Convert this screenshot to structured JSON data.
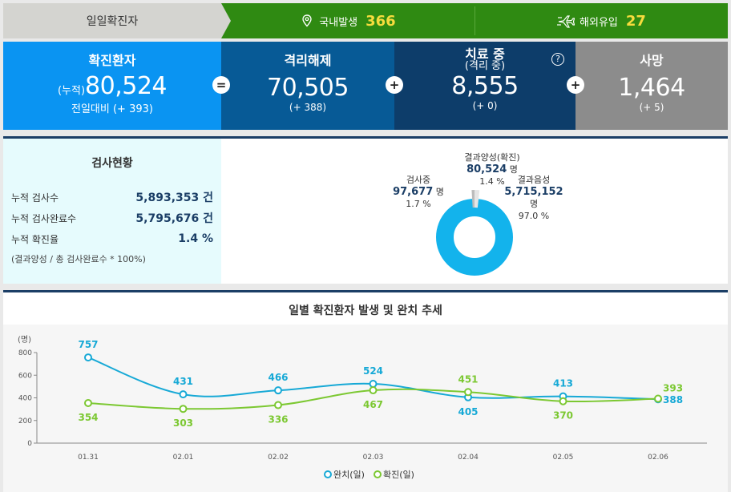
{
  "topbar": {
    "label": "일일확진자",
    "domestic_label": "국내발생",
    "domestic_value": "366",
    "overseas_label": "해외유입",
    "overseas_value": "27"
  },
  "stats": {
    "confirmed": {
      "title": "확진환자",
      "prefix": "(누적)",
      "value": "80,524",
      "diff": "전일대비 (+ 393)"
    },
    "released": {
      "title": "격리해제",
      "value": "70,505",
      "diff": "(+ 388)"
    },
    "treating": {
      "title": "치료 중",
      "subtitle": "(격리 중)",
      "value": "8,555",
      "diff": "(+ 0)",
      "help": "?"
    },
    "deaths": {
      "title": "사망",
      "value": "1,464",
      "diff": "(+ 5)"
    },
    "ops": [
      "=",
      "+",
      "+"
    ]
  },
  "tests": {
    "title": "검사현황",
    "rows": [
      {
        "label": "누적 검사수",
        "value": "5,893,353 건"
      },
      {
        "label": "누적 검사완료수",
        "value": "5,795,676 건"
      },
      {
        "label": "누적 확진율",
        "value": "1.4 %"
      }
    ],
    "note": "(결과양성 / 총 검사완료수 * 100%)",
    "pie": {
      "positive": {
        "label": "결과양성(확진)",
        "value": "80,524",
        "unit": "명",
        "pct": "1.4 %"
      },
      "testing": {
        "label": "검사중",
        "value": "97,677",
        "unit": "명",
        "pct": "1.7 %"
      },
      "negative": {
        "label": "결과음성",
        "value": "5,715,152",
        "unit": "명",
        "pct": "97.0 %"
      }
    }
  },
  "colors": {
    "released": "#17a9d6",
    "confirmed": "#7cc832",
    "pie_main": "#13b3ec"
  },
  "chart_data": {
    "type": "line",
    "title": "일별 확진환자 발생 및 완치 추세",
    "ylabel": "(명)",
    "categories": [
      "01.31",
      "02.01",
      "02.02",
      "02.03",
      "02.04",
      "02.05",
      "02.06"
    ],
    "yticks": [
      "0",
      "200",
      "400",
      "600",
      "800"
    ],
    "ylim": [
      0,
      800
    ],
    "series": [
      {
        "name": "완치(일)",
        "values": [
          757,
          431,
          466,
          524,
          405,
          413,
          388
        ],
        "color": "#17a9d6"
      },
      {
        "name": "확진(일)",
        "values": [
          354,
          303,
          336,
          467,
          451,
          370,
          393
        ],
        "color": "#7cc832"
      }
    ],
    "legend": "bottom-center"
  }
}
